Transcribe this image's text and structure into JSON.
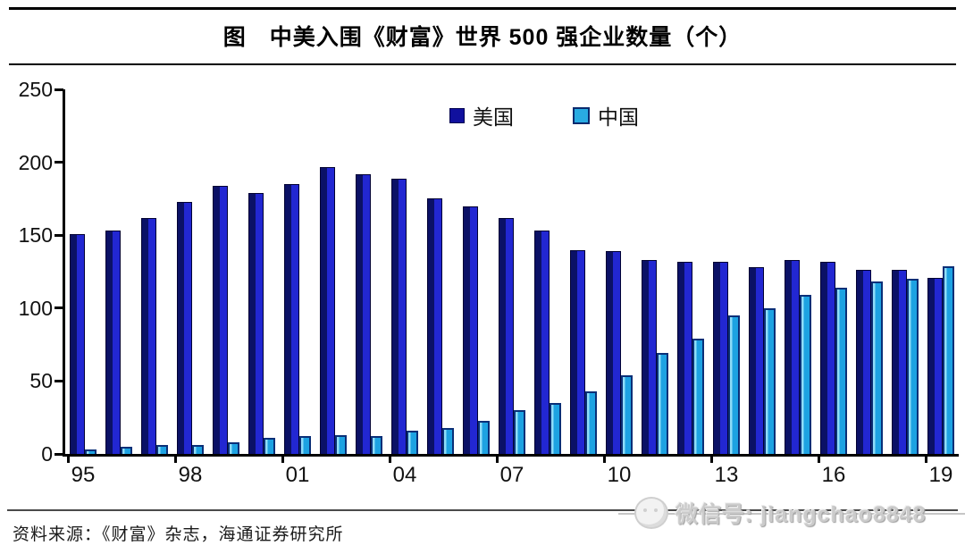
{
  "title": {
    "text": "图　中美入围《财富》世界 500 强企业数量（个）"
  },
  "legend": {
    "us": "美国",
    "cn": "中国"
  },
  "colors": {
    "us_bar": "#1a1fc0",
    "us_bar_shade": "#0b1166",
    "cn_bar": "#29abe2",
    "cn_bar_outline": "#0a2f77",
    "axis": "#000000"
  },
  "chart_data": {
    "type": "bar",
    "title": "图　中美入围《财富》世界 500 强企业数量（个）",
    "categories": [
      1995,
      1996,
      1997,
      1998,
      1999,
      2000,
      2001,
      2002,
      2003,
      2004,
      2005,
      2006,
      2007,
      2008,
      2009,
      2010,
      2011,
      2012,
      2013,
      2014,
      2015,
      2016,
      2017,
      2018,
      2019
    ],
    "x_tick_labels": [
      "95",
      "98",
      "01",
      "04",
      "07",
      "10",
      "13",
      "16",
      "19"
    ],
    "series": [
      {
        "name": "美国",
        "color": "#10109e",
        "values": [
          151,
          153,
          162,
          173,
          184,
          179,
          185,
          197,
          192,
          189,
          175,
          170,
          162,
          153,
          140,
          139,
          133,
          132,
          132,
          128,
          133,
          132,
          126,
          126,
          121
        ]
      },
      {
        "name": "中国",
        "color": "#29abe2",
        "values": [
          3,
          5,
          6,
          6,
          8,
          11,
          12,
          13,
          12,
          16,
          18,
          23,
          30,
          35,
          43,
          54,
          69,
          79,
          95,
          100,
          109,
          114,
          118,
          120,
          129
        ]
      }
    ],
    "xlabel": "",
    "ylabel": "",
    "ylim": [
      0,
      250
    ],
    "yticks": [
      0,
      50,
      100,
      150,
      200,
      250
    ],
    "grid": false,
    "legend_position": "top-center"
  },
  "footer": {
    "source": "资料来源：《财富》杂志，海通证券研究所"
  },
  "watermark": {
    "text": "微信号: jiangchao8848",
    "icon": "wechat-chat-bubble"
  }
}
